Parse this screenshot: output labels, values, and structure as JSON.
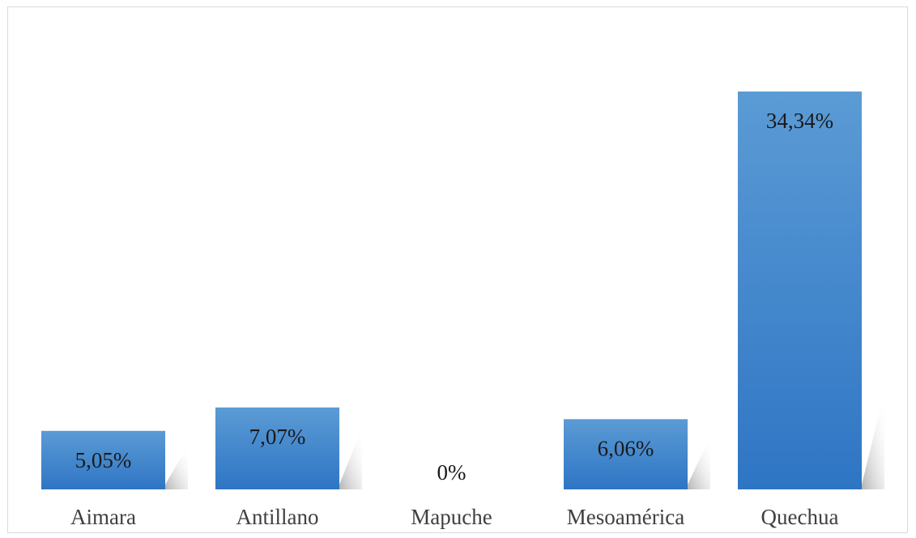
{
  "chart_data": {
    "type": "bar",
    "categories": [
      "Aimara",
      "Antillano",
      "Mapuche",
      "Mesoamérica",
      "Quechua"
    ],
    "values": [
      5.05,
      7.07,
      0,
      6.06,
      34.34
    ],
    "value_labels": [
      "5,05%",
      "7,07%",
      "0%",
      "6,06%",
      "34,34%"
    ],
    "title": "",
    "xlabel": "",
    "ylabel": "",
    "ylim": [
      0,
      40
    ],
    "grid": false,
    "legend": "none",
    "bar_color_top": "#5b9bd5",
    "bar_color_bottom": "#2e75c4",
    "shadow_color": "#a6a6a6"
  }
}
